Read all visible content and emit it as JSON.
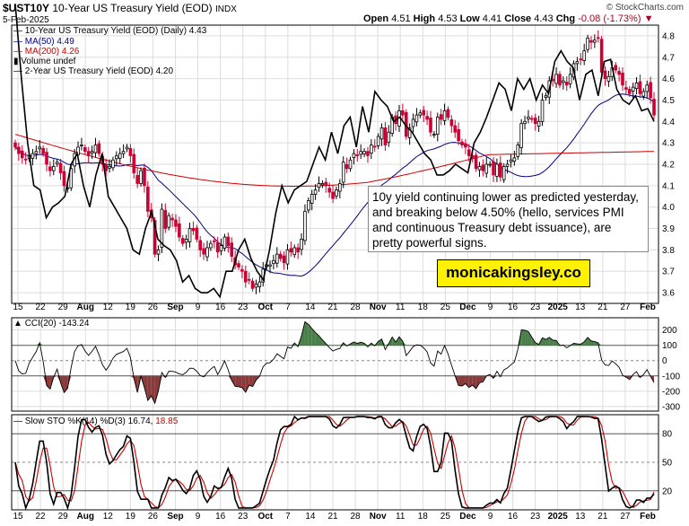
{
  "header": {
    "symbol": "$UST10Y",
    "name": "10-Year US Treasury Yield (EOD)",
    "exchange": "INDX",
    "date": "5-Feb-2025",
    "credit": "© StockCharts.com",
    "open_label": "Open",
    "open": "4.51",
    "high_label": "High",
    "high": "4.53",
    "low_label": "Low",
    "low": "4.41",
    "close_label": "Close",
    "close": "4.43",
    "chg_label": "Chg",
    "chg": "-0.08 (-1.73%)",
    "chg_icon": "down-triangle-icon"
  },
  "legend": {
    "price": "10-Year US Treasury Yield (EOD) (Daily) 4.43",
    "ma50": "MA(50) 4.49",
    "ma200": "MA(200) 4.26",
    "volume": "Volume undef",
    "overlay": "2-Year US Treasury Yield (EOD) 4.20"
  },
  "annotation": {
    "text": "10y yield continuing lower as predicted yesterday, and breaking below 4.50% (hello, services PMI and continuous Treasury debt issuance), are pretty powerful signs.",
    "brand": "monicakingsley.co"
  },
  "cci_panel": {
    "label": "CCI(20)",
    "value": "-143.24"
  },
  "sto_panel": {
    "label": "Slow STO %K(14) %D(3)",
    "k": "16.74",
    "d": "18.85"
  },
  "colors": {
    "up": "#000000",
    "down": "#cc0033",
    "ma50": "#000080",
    "ma200": "#cc0000",
    "cci_pos": "#4a7f4a",
    "cci_neg": "#8a3a3a",
    "grid": "#dddddd"
  },
  "chart_data": [
    {
      "type": "candlestick",
      "title": "10-Year US Treasury Yield (EOD) (Daily)",
      "ylim": [
        3.55,
        4.85
      ],
      "y_ticks": [
        3.6,
        3.7,
        3.8,
        3.9,
        4.0,
        4.1,
        4.2,
        4.3,
        4.4,
        4.5,
        4.6,
        4.7,
        4.8
      ],
      "x_tick_labels": [
        "15",
        "22",
        "29",
        "Aug",
        "12",
        "19",
        "26",
        "Sep",
        "9",
        "16",
        "23",
        "Oct",
        "7",
        "14",
        "21",
        "28",
        "Nov",
        "11",
        "18",
        "25",
        "Dec",
        "9",
        "16",
        "23",
        "2025",
        "13",
        "21",
        "27",
        "Feb"
      ],
      "bold_tick_labels": [
        "Aug",
        "Sep",
        "Oct",
        "Nov",
        "Dec",
        "2025",
        "Feb"
      ],
      "closes": [
        4.28,
        4.25,
        4.23,
        4.22,
        4.24,
        4.25,
        4.26,
        4.28,
        4.25,
        4.2,
        4.17,
        4.19,
        4.21,
        4.16,
        4.1,
        4.09,
        4.18,
        4.25,
        4.28,
        4.29,
        4.26,
        4.24,
        4.26,
        4.29,
        4.25,
        4.2,
        4.17,
        4.19,
        4.22,
        4.24,
        4.25,
        4.26,
        4.28,
        4.24,
        4.16,
        4.11,
        4.17,
        4.1,
        3.98,
        3.95,
        3.78,
        3.8,
        3.99,
        3.9,
        3.96,
        3.94,
        3.91,
        3.86,
        3.83,
        3.85,
        3.9,
        3.89,
        3.85,
        3.8,
        3.78,
        3.81,
        3.83,
        3.84,
        3.79,
        3.82,
        3.86,
        3.82,
        3.77,
        3.73,
        3.72,
        3.7,
        3.65,
        3.66,
        3.62,
        3.64,
        3.65,
        3.71,
        3.73,
        3.73,
        3.75,
        3.78,
        3.76,
        3.74,
        3.8,
        3.79,
        3.81,
        3.79,
        3.85,
        3.98,
        4.03,
        4.06,
        4.08,
        4.11,
        4.11,
        4.1,
        4.07,
        4.04,
        4.08,
        4.11,
        4.21,
        4.18,
        4.22,
        4.25,
        4.24,
        4.26,
        4.26,
        4.24,
        4.29,
        4.28,
        4.33,
        4.37,
        4.29,
        4.35,
        4.42,
        4.39,
        4.45,
        4.43,
        4.33,
        4.37,
        4.41,
        4.43,
        4.44,
        4.43,
        4.41,
        4.35,
        4.34,
        4.42,
        4.41,
        4.45,
        4.42,
        4.38,
        4.35,
        4.31,
        4.29,
        4.28,
        4.24,
        4.23,
        4.18,
        4.19,
        4.17,
        4.2,
        4.2,
        4.15,
        4.2,
        4.14,
        4.19,
        4.2,
        4.22,
        4.23,
        4.29,
        4.39,
        4.4,
        4.42,
        4.41,
        4.39,
        4.4,
        4.5,
        4.52,
        4.59,
        4.59,
        4.62,
        4.57,
        4.59,
        4.57,
        4.62,
        4.67,
        4.68,
        4.69,
        4.73,
        4.79,
        4.77,
        4.78,
        4.79,
        4.63,
        4.6,
        4.61,
        4.65,
        4.64,
        4.62,
        4.57,
        4.55,
        4.53,
        4.56,
        4.58,
        4.53,
        4.54,
        4.57,
        4.51,
        4.43
      ],
      "ma50_last": 4.49,
      "ma200_last": 4.26,
      "overlay_series": {
        "name": "2-Year US Treasury Yield (EOD)",
        "last": 4.2,
        "plotted_on_price_scale": [
          4.95,
          4.6,
          4.3,
          4.1,
          4.08,
          3.95,
          4.0,
          4.02,
          4.05,
          4.2,
          4.25,
          4.1,
          4.0,
          4.15,
          4.25,
          4.05,
          4.0,
          3.95,
          3.9,
          3.8,
          3.78,
          3.9,
          3.98,
          3.85,
          3.82,
          3.8,
          3.75,
          3.65,
          3.68,
          3.62,
          3.6,
          3.6,
          3.62,
          3.58,
          3.7,
          3.7,
          3.8,
          3.85,
          3.76,
          3.7,
          3.66,
          3.8,
          3.97,
          4.1,
          4.02,
          4.08,
          4.1,
          4.12,
          4.2,
          4.28,
          4.22,
          4.35,
          4.25,
          4.38,
          4.42,
          4.28,
          4.47,
          4.35,
          4.54,
          4.5,
          4.47,
          4.4,
          4.42,
          4.38,
          4.35,
          4.3,
          4.25,
          4.22,
          4.15,
          4.15,
          4.17,
          4.2,
          4.18,
          4.16,
          4.3,
          4.35,
          4.42,
          4.5,
          4.58,
          4.55,
          4.45,
          4.6,
          4.55,
          4.6,
          4.5,
          4.57,
          4.53,
          4.68,
          4.73,
          4.68,
          4.65,
          4.5,
          4.62,
          4.64,
          4.52,
          4.68,
          4.69,
          4.55,
          4.5,
          4.48,
          4.52,
          4.45,
          4.46,
          4.4
        ]
      }
    },
    {
      "type": "area",
      "title": "CCI(20)",
      "ylim": [
        -330,
        280
      ],
      "y_ticks": [
        -300,
        -200,
        -100,
        0,
        100,
        200
      ],
      "levels": [
        100,
        -100
      ],
      "last": -143.24
    },
    {
      "type": "line",
      "title": "Slow STO %K(14) %D(3)",
      "ylim": [
        0,
        100
      ],
      "y_ticks": [
        20,
        50,
        80
      ],
      "series": [
        {
          "name": "%K",
          "last": 16.74
        },
        {
          "name": "%D",
          "last": 18.85
        }
      ]
    }
  ]
}
